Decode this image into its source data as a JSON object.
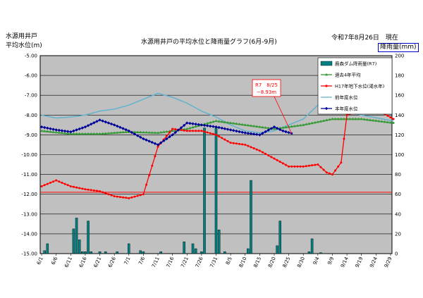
{
  "header": {
    "ylabel_line1": "水源用井戸",
    "ylabel_line2": "平均水位(m)",
    "title": "水源用井戸の平均水位と降雨量グラフ(6月-9月)",
    "date_text": "令和7年8月26日　現在",
    "y2_label": "降雨量(mm)"
  },
  "colors": {
    "plot_bg": "#c0c0c0",
    "rain": "#008080",
    "avg4": "#339933",
    "h17": "#ff0000",
    "prev": "#66b3cc",
    "this_year": "#000099",
    "ref_line": "#ff0000"
  },
  "chart_data": {
    "type": "line",
    "x_start": "6/1",
    "x_end": "9/30",
    "x_tick_labels": [
      "6/1",
      "6/6",
      "6/11",
      "6/16",
      "6/21",
      "6/26",
      "7/1",
      "7/6",
      "7/11",
      "7/16",
      "7/21",
      "7/26",
      "7/31",
      "8/5",
      "8/10",
      "8/15",
      "8/20",
      "8/25",
      "8/30",
      "9/4",
      "9/9",
      "9/14",
      "9/19",
      "9/24",
      "9/29"
    ],
    "y_left": {
      "min": -15.0,
      "max": -5.0,
      "ticks": [
        "-5.00",
        "-6.00",
        "-7.00",
        "-8.00",
        "-9.00",
        "-10.00",
        "-11.00",
        "-12.00",
        "-13.00",
        "-14.00",
        "-15.00"
      ]
    },
    "y_right": {
      "min": 0,
      "max": 200,
      "ticks": [
        "0",
        "20",
        "40",
        "60",
        "80",
        "100",
        "120",
        "140",
        "160",
        "180",
        "200"
      ]
    },
    "grid": true,
    "legend_position": "top-right",
    "reference_line": {
      "y": -11.9
    },
    "annotation": {
      "line1": "R7　8/25",
      "line2": "−8.93m",
      "x_day": 86,
      "y": -8.93
    },
    "series": [
      {
        "name": "鹿森ダム降雨量(R7)",
        "type": "bar",
        "axis": "right",
        "x": [
          1,
          2,
          11,
          12,
          13,
          14,
          15,
          16,
          17,
          20,
          22,
          26,
          30,
          34,
          35,
          41,
          49,
          52,
          53,
          55,
          56,
          60,
          61,
          63,
          71,
          72,
          81,
          82,
          92,
          93,
          96
        ],
        "values": [
          3,
          10,
          25,
          36,
          14,
          2,
          2,
          33,
          2,
          2,
          2,
          2,
          10,
          3,
          2,
          2,
          12,
          10,
          5,
          2,
          127,
          127,
          24,
          2,
          5,
          74,
          8,
          33,
          2,
          15,
          1
        ]
      },
      {
        "name": "過去4年平均",
        "type": "line",
        "axis": "left",
        "x": [
          0,
          10,
          20,
          30,
          40,
          50,
          60,
          70,
          80,
          90,
          100,
          110,
          121
        ],
        "values": [
          -8.8,
          -8.95,
          -8.95,
          -8.85,
          -8.9,
          -8.7,
          -8.3,
          -8.5,
          -8.7,
          -8.5,
          -8.2,
          -8.2,
          -8.4
        ]
      },
      {
        "name": "H17年地下水位(渇水年)",
        "type": "line",
        "axis": "left",
        "x": [
          0,
          5,
          10,
          15,
          20,
          25,
          30,
          35,
          40,
          45,
          50,
          55,
          60,
          65,
          70,
          75,
          80,
          85,
          90,
          95,
          98,
          100,
          103,
          105,
          110,
          115,
          121
        ],
        "values": [
          -11.6,
          -11.3,
          -11.6,
          -11.75,
          -11.85,
          -12.1,
          -12.2,
          -12.0,
          -9.6,
          -8.7,
          -8.8,
          -8.8,
          -9.0,
          -9.4,
          -9.5,
          -9.8,
          -10.2,
          -10.6,
          -10.6,
          -10.5,
          -10.9,
          -11.0,
          -10.4,
          -8.0,
          -7.7,
          -7.7,
          -8.2
        ]
      },
      {
        "name": "前年度水位",
        "type": "line",
        "axis": "left",
        "x": [
          0,
          5,
          10,
          15,
          20,
          25,
          30,
          35,
          40,
          45,
          50,
          55,
          60,
          65,
          70,
          75,
          80,
          85,
          90,
          95,
          100,
          110,
          121
        ],
        "values": [
          -8.0,
          -8.15,
          -8.1,
          -8.0,
          -7.8,
          -7.7,
          -7.5,
          -7.2,
          -6.9,
          -7.1,
          -7.4,
          -7.8,
          -8.1,
          -8.5,
          -8.8,
          -8.9,
          -8.8,
          -8.5,
          -8.2,
          -7.5,
          -7.6,
          -8.0,
          -8.3
        ]
      },
      {
        "name": "本年度水位",
        "type": "line",
        "axis": "left",
        "x": [
          0,
          5,
          10,
          15,
          20,
          25,
          30,
          35,
          40,
          45,
          50,
          55,
          60,
          65,
          70,
          75,
          80,
          83,
          86
        ],
        "values": [
          -8.6,
          -8.75,
          -8.85,
          -8.6,
          -8.25,
          -8.5,
          -8.8,
          -9.2,
          -9.5,
          -9.0,
          -8.4,
          -8.5,
          -8.6,
          -8.75,
          -8.9,
          -9.0,
          -8.6,
          -8.8,
          -8.93
        ]
      }
    ]
  }
}
